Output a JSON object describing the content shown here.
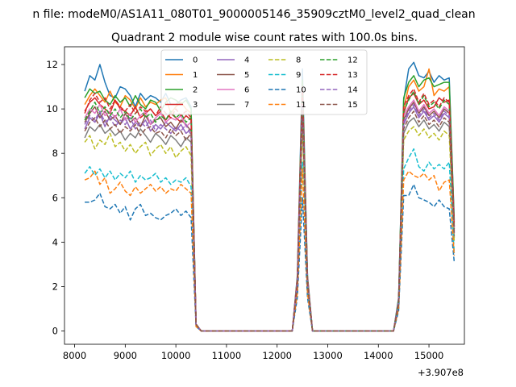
{
  "chart_data": {
    "type": "line",
    "suptitle": "n file: modeM0/AS1A11_080T01_9000005146_35909cztM0_level2_quad_clean",
    "title": "Quadrant 2 module wise count rates with 100.0s bins.",
    "xlabel": "",
    "ylabel": "",
    "x_offset_label": "+3.907e8",
    "xlim": [
      7800,
      15700
    ],
    "ylim": [
      -0.6,
      12.8
    ],
    "xticks": [
      8000,
      9000,
      10000,
      11000,
      12000,
      13000,
      14000,
      15000
    ],
    "yticks": [
      0,
      2,
      4,
      6,
      8,
      10,
      12
    ],
    "xtick_labels": [
      "8000",
      "9000",
      "10000",
      "11000",
      "12000",
      "13000",
      "14000",
      "15000"
    ],
    "ytick_labels": [
      "0",
      "2",
      "4",
      "6",
      "8",
      "10",
      "12"
    ],
    "legend_position": "upper center",
    "grid": false,
    "x": [
      8200,
      8300,
      8400,
      8500,
      8600,
      8700,
      8800,
      8900,
      9000,
      9100,
      9200,
      9300,
      9400,
      9500,
      9600,
      9700,
      9800,
      9900,
      10000,
      10100,
      10200,
      10300,
      10400,
      10500,
      12300,
      12400,
      12500,
      12600,
      12700,
      12800,
      14300,
      14400,
      14500,
      14600,
      14700,
      14800,
      14900,
      15000,
      15100,
      15200,
      15300,
      15400,
      15500
    ],
    "series": [
      {
        "name": "0",
        "color": "#1f77b4",
        "dash": "solid",
        "values": [
          10.8,
          11.5,
          11.3,
          12.0,
          11.2,
          10.6,
          10.5,
          11.0,
          10.9,
          10.6,
          10.1,
          10.7,
          10.4,
          10.6,
          10.5,
          10.3,
          10.7,
          10.2,
          10.2,
          10.4,
          10.5,
          10.1,
          0.3,
          0,
          0,
          2.5,
          11.8,
          2.5,
          0,
          0,
          0,
          1.5,
          10.4,
          11.8,
          12.1,
          11.5,
          11.4,
          11.7,
          11.2,
          11.5,
          11.3,
          11.4,
          5.0
        ]
      },
      {
        "name": "1",
        "color": "#ff7f0e",
        "dash": "solid",
        "values": [
          10.2,
          10.6,
          10.9,
          10.6,
          10.3,
          10.8,
          10.3,
          10.1,
          10.6,
          10.4,
          10.0,
          10.5,
          10.1,
          10.3,
          10.2,
          10.4,
          10.5,
          9.8,
          10.1,
          10.3,
          10.0,
          9.8,
          0.3,
          0,
          0,
          2.4,
          11.2,
          2.4,
          0,
          0,
          0,
          1.4,
          10.0,
          11.0,
          11.3,
          10.8,
          11.0,
          11.8,
          10.6,
          10.9,
          10.8,
          11.0,
          4.8
        ]
      },
      {
        "name": "2",
        "color": "#2ca02c",
        "dash": "solid",
        "values": [
          10.5,
          10.9,
          10.7,
          10.8,
          10.4,
          10.2,
          10.6,
          10.3,
          10.5,
          10.1,
          10.6,
          10.2,
          10.0,
          10.4,
          10.3,
          9.9,
          10.3,
          10.5,
          10.4,
          10.2,
          10.4,
          10.0,
          0.3,
          0,
          0,
          2.4,
          11.3,
          2.4,
          0,
          0,
          0,
          1.4,
          10.5,
          11.2,
          11.5,
          11.0,
          11.3,
          11.4,
          11.0,
          11.1,
          11.2,
          11.2,
          4.9
        ]
      },
      {
        "name": "3",
        "color": "#d62728",
        "dash": "solid",
        "values": [
          9.9,
          10.3,
          10.5,
          10.2,
          10.0,
          9.8,
          10.4,
          10.0,
          9.9,
          9.7,
          10.1,
          9.6,
          9.8,
          10.0,
          9.7,
          9.9,
          9.5,
          9.8,
          9.6,
          9.4,
          9.7,
          9.5,
          0.3,
          0,
          0,
          2.3,
          10.9,
          2.3,
          0,
          0,
          0,
          1.3,
          9.8,
          10.5,
          10.7,
          10.2,
          10.4,
          10.0,
          10.1,
          10.5,
          10.3,
          10.4,
          4.7
        ]
      },
      {
        "name": "4",
        "color": "#9467bd",
        "dash": "solid",
        "values": [
          9.1,
          9.6,
          9.4,
          9.8,
          9.2,
          9.7,
          9.5,
          9.3,
          9.6,
          9.1,
          9.4,
          9.2,
          9.5,
          9.0,
          9.3,
          9.1,
          9.4,
          9.2,
          9.0,
          9.3,
          8.9,
          9.1,
          0.3,
          0,
          0,
          2.2,
          10.3,
          2.2,
          0,
          0,
          0,
          1.3,
          9.3,
          9.8,
          10.1,
          9.6,
          9.9,
          9.5,
          9.7,
          9.4,
          9.8,
          9.6,
          4.4
        ]
      },
      {
        "name": "5",
        "color": "#8c564b",
        "dash": "solid",
        "values": [
          9.4,
          9.8,
          10.1,
          9.6,
          9.9,
          9.5,
          9.7,
          9.3,
          9.8,
          9.4,
          9.6,
          9.2,
          9.7,
          9.3,
          9.5,
          9.6,
          9.2,
          9.4,
          9.1,
          9.5,
          9.3,
          9.0,
          0.3,
          0,
          0,
          2.2,
          10.5,
          2.2,
          0,
          0,
          0,
          1.3,
          9.5,
          10.0,
          10.3,
          9.8,
          10.1,
          9.7,
          9.9,
          9.6,
          10.0,
          9.8,
          4.5
        ]
      },
      {
        "name": "6",
        "color": "#e377c2",
        "dash": "solid",
        "values": [
          9.6,
          10.0,
          9.8,
          10.2,
          9.7,
          9.9,
          9.6,
          10.0,
          9.5,
          9.8,
          9.4,
          9.7,
          9.9,
          9.3,
          9.6,
          9.8,
          9.4,
          9.6,
          9.5,
          9.7,
          9.2,
          9.4,
          0.3,
          0,
          0,
          2.3,
          10.6,
          2.3,
          0,
          0,
          0,
          1.3,
          9.7,
          10.1,
          10.4,
          9.9,
          10.2,
          9.8,
          10.0,
          9.7,
          10.1,
          9.9,
          4.6
        ]
      },
      {
        "name": "7",
        "color": "#7f7f7f",
        "dash": "solid",
        "values": [
          8.7,
          9.2,
          9.0,
          9.3,
          8.9,
          9.1,
          8.8,
          9.0,
          8.6,
          8.9,
          8.7,
          9.1,
          8.8,
          8.5,
          8.9,
          8.7,
          8.4,
          8.8,
          8.6,
          8.3,
          8.7,
          8.5,
          0.3,
          0,
          0,
          2.1,
          9.6,
          2.1,
          0,
          0,
          0,
          1.2,
          8.9,
          9.4,
          9.6,
          9.2,
          9.5,
          9.1,
          9.3,
          9.0,
          9.4,
          9.2,
          4.2
        ]
      },
      {
        "name": "8",
        "color": "#bcbd22",
        "dash": "dashed",
        "values": [
          8.5,
          8.8,
          8.2,
          8.6,
          8.4,
          8.9,
          8.3,
          8.5,
          8.1,
          8.4,
          8.0,
          8.3,
          8.5,
          7.9,
          8.2,
          8.4,
          8.0,
          8.3,
          7.8,
          8.1,
          8.3,
          7.9,
          0.3,
          0,
          0,
          2.0,
          9.2,
          2.0,
          0,
          0,
          0,
          1.2,
          8.6,
          9.0,
          9.2,
          8.8,
          9.1,
          8.7,
          8.9,
          8.6,
          9.0,
          8.8,
          4.0
        ]
      },
      {
        "name": "9",
        "color": "#17becf",
        "dash": "dashed",
        "values": [
          7.1,
          7.4,
          7.0,
          7.3,
          6.9,
          7.2,
          6.8,
          7.1,
          6.9,
          7.2,
          6.7,
          7.0,
          6.8,
          6.9,
          7.1,
          6.7,
          6.9,
          6.6,
          6.8,
          6.7,
          6.9,
          6.5,
          0.2,
          0,
          0,
          1.8,
          7.6,
          1.8,
          0,
          0,
          0,
          1.0,
          7.3,
          7.8,
          8.2,
          7.4,
          7.2,
          7.6,
          7.3,
          7.5,
          7.3,
          7.6,
          3.5
        ]
      },
      {
        "name": "10",
        "color": "#1f77b4",
        "dash": "dashed",
        "values": [
          5.8,
          5.8,
          5.9,
          6.2,
          5.6,
          5.5,
          5.7,
          5.3,
          5.6,
          5.0,
          5.5,
          5.7,
          5.2,
          5.3,
          5.1,
          5.0,
          5.2,
          5.3,
          5.5,
          5.2,
          5.4,
          5.1,
          0.2,
          0,
          0,
          1.5,
          6.0,
          1.5,
          0,
          0,
          0,
          0.9,
          6.1,
          6.1,
          6.6,
          6.0,
          5.9,
          5.8,
          5.6,
          5.9,
          5.6,
          5.5,
          3.1
        ]
      },
      {
        "name": "11",
        "color": "#ff7f0e",
        "dash": "dashed",
        "values": [
          6.8,
          6.9,
          7.2,
          6.6,
          6.9,
          6.2,
          6.4,
          6.7,
          6.3,
          6.1,
          6.5,
          6.2,
          6.4,
          6.6,
          6.3,
          6.5,
          6.2,
          6.4,
          6.3,
          6.6,
          6.4,
          6.2,
          0.2,
          0,
          0,
          1.7,
          7.3,
          1.7,
          0,
          0,
          0,
          1.0,
          6.8,
          7.2,
          7.0,
          6.9,
          7.1,
          6.8,
          7.0,
          6.3,
          6.7,
          6.8,
          3.4
        ]
      },
      {
        "name": "12",
        "color": "#2ca02c",
        "dash": "dashed",
        "values": [
          9.5,
          9.9,
          10.3,
          9.8,
          10.1,
          9.7,
          10.0,
          9.6,
          9.9,
          9.5,
          9.8,
          10.0,
          9.6,
          9.8,
          9.4,
          9.7,
          9.5,
          9.9,
          9.6,
          9.8,
          9.4,
          9.6,
          0.3,
          0,
          0,
          2.2,
          10.8,
          2.2,
          0,
          0,
          0,
          1.3,
          9.9,
          10.4,
          10.8,
          10.2,
          10.6,
          10.1,
          10.3,
          10.0,
          10.4,
          10.2,
          4.6
        ]
      },
      {
        "name": "13",
        "color": "#d62728",
        "dash": "dashed",
        "values": [
          9.8,
          10.4,
          10.7,
          10.3,
          10.5,
          10.0,
          10.4,
          10.1,
          9.9,
          10.2,
          9.8,
          10.1,
          9.9,
          10.0,
          9.7,
          10.1,
          9.8,
          9.6,
          10.0,
          9.7,
          9.9,
          9.6,
          0.3,
          0,
          0,
          2.3,
          11.0,
          2.3,
          0,
          0,
          0,
          1.3,
          10.1,
          10.6,
          10.9,
          10.3,
          10.7,
          10.2,
          10.4,
          10.1,
          10.5,
          10.3,
          4.7
        ]
      },
      {
        "name": "14",
        "color": "#9467bd",
        "dash": "dashed",
        "values": [
          9.3,
          9.7,
          9.5,
          9.9,
          9.4,
          9.6,
          9.2,
          9.5,
          9.3,
          9.6,
          9.1,
          9.4,
          9.2,
          9.5,
          9.0,
          9.3,
          9.1,
          8.9,
          9.2,
          9.0,
          9.3,
          8.8,
          0.3,
          0,
          0,
          2.2,
          10.2,
          2.2,
          0,
          0,
          0,
          1.3,
          9.4,
          9.9,
          10.2,
          9.7,
          10.0,
          9.6,
          9.8,
          9.5,
          9.9,
          9.7,
          4.4
        ]
      },
      {
        "name": "15",
        "color": "#8c564b",
        "dash": "dashed",
        "values": [
          9.0,
          9.4,
          9.6,
          9.2,
          9.5,
          9.1,
          9.3,
          8.9,
          9.2,
          9.0,
          9.3,
          8.8,
          9.1,
          9.2,
          8.9,
          9.0,
          8.7,
          9.1,
          8.8,
          9.0,
          8.6,
          8.9,
          0.3,
          0,
          0,
          2.1,
          9.9,
          2.1,
          0,
          0,
          0,
          1.2,
          9.1,
          9.6,
          9.9,
          9.4,
          9.7,
          9.3,
          9.5,
          9.2,
          9.6,
          9.4,
          4.3
        ]
      }
    ]
  }
}
